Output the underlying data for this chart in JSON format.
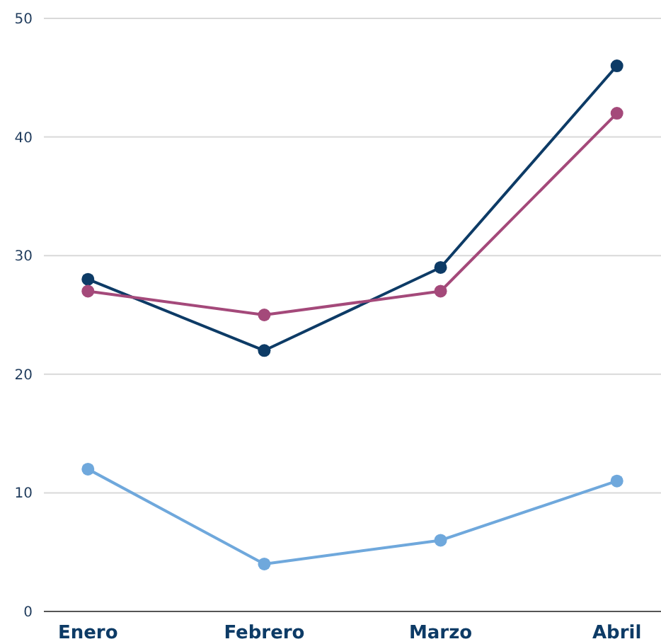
{
  "chart_data": {
    "type": "line",
    "categories": [
      "Enero",
      "Febrero",
      "Marzo",
      "Abril"
    ],
    "series": [
      {
        "color": "#0d3b66",
        "values": [
          28,
          22,
          29,
          46
        ]
      },
      {
        "color": "#a4497a",
        "values": [
          27,
          25,
          27,
          42
        ]
      },
      {
        "color": "#6fa8dc",
        "values": [
          12,
          4,
          6,
          11
        ]
      }
    ],
    "ylim": [
      0,
      50
    ],
    "yticks": [
      0,
      10,
      20,
      30,
      40,
      50
    ],
    "grid": "y",
    "marker": "circle"
  }
}
